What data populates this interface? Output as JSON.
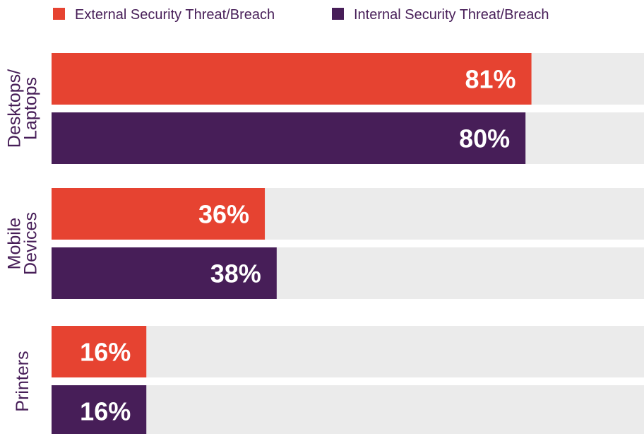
{
  "chart_data": {
    "type": "bar",
    "orientation": "horizontal",
    "title": "",
    "xlabel": "",
    "ylabel": "",
    "xlim": [
      0,
      100
    ],
    "categories": [
      "Desktops/\nLaptops",
      "Mobile\nDevices",
      "Printers"
    ],
    "series": [
      {
        "name": "External Security Threat/Breach",
        "color": "#E64331",
        "values": [
          81,
          36,
          16
        ],
        "labels": [
          "81%",
          "36%",
          "16%"
        ]
      },
      {
        "name": "Internal Security Threat/Breach",
        "color": "#471E58",
        "values": [
          80,
          38,
          16
        ],
        "labels": [
          "80%",
          "38%",
          "16%"
        ]
      }
    ],
    "track_color": "#EBEBEB",
    "text_color": "#471E58",
    "value_label_color": "#FFFFFF",
    "legend_position": "top-left",
    "grid": false
  }
}
